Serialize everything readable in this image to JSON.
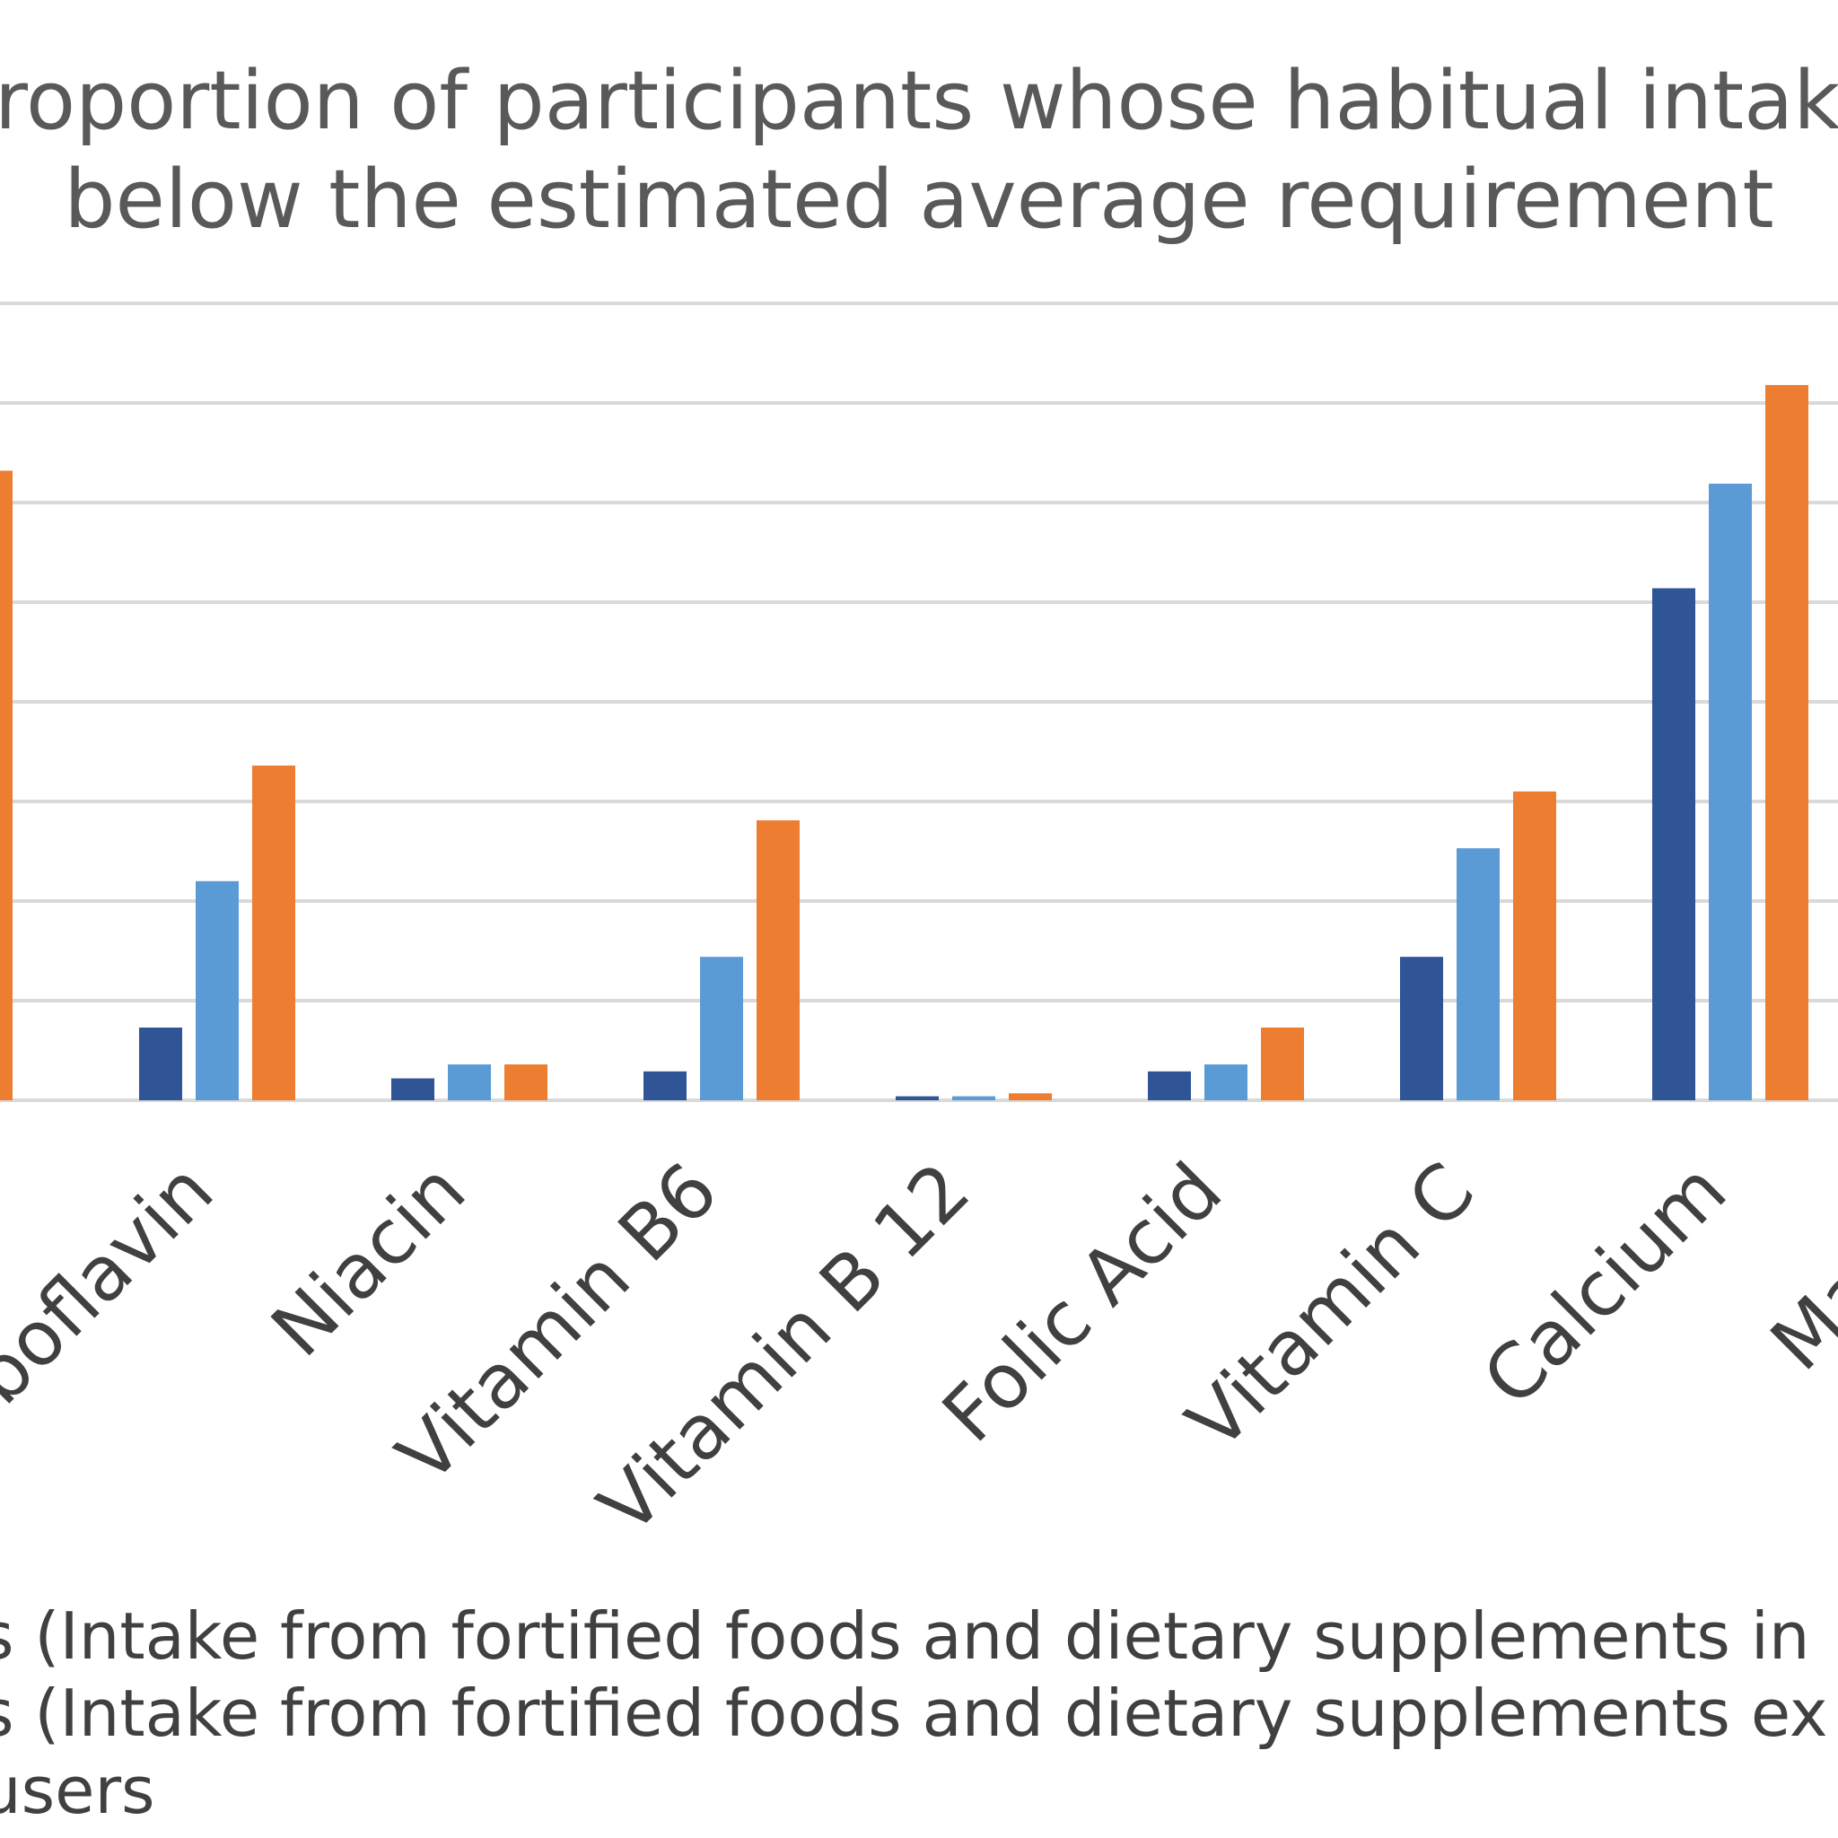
{
  "chart_data": {
    "type": "bar",
    "title": "Proportion of participants whose habitual intake was below the estimated average requirement",
    "title_lines": [
      "roportion of participants whose habitual intake",
      "below the estimated average  requirement"
    ],
    "categories": [
      "Riboflavin",
      "Niacin",
      "Vitamin B6",
      "Vitamin B12",
      "Folic Acid",
      "Vitamin C",
      "Calcium",
      "Magnesium"
    ],
    "category_labels_visible": [
      "boflavin",
      "Niacin",
      "Vitamin B6",
      "Vitamin B 12",
      "Folic Acid",
      "Vitamin C",
      "Calcium",
      "Magne"
    ],
    "series": [
      {
        "color": "#2f5597",
        "values": [
          7.3,
          2.2,
          2.9,
          0.4,
          2.9,
          14.4,
          51.4,
          null
        ]
      },
      {
        "color": "#5b9bd5",
        "values": [
          22.0,
          3.6,
          14.4,
          0.4,
          3.6,
          25.3,
          61.9,
          null
        ]
      },
      {
        "color": "#ed7d31",
        "values": [
          33.6,
          3.6,
          28.1,
          0.7,
          7.3,
          31.0,
          71.8,
          null
        ]
      }
    ],
    "partial_left_bar": {
      "color": "#ed7d31",
      "value": 63.2
    },
    "ylim": [
      0,
      80
    ],
    "grid": true,
    "legend_text": [
      "s (Intake from fortified foods and dietary supplements in",
      "s (Intake from fortified foods and dietary supplements ex",
      "users"
    ]
  }
}
